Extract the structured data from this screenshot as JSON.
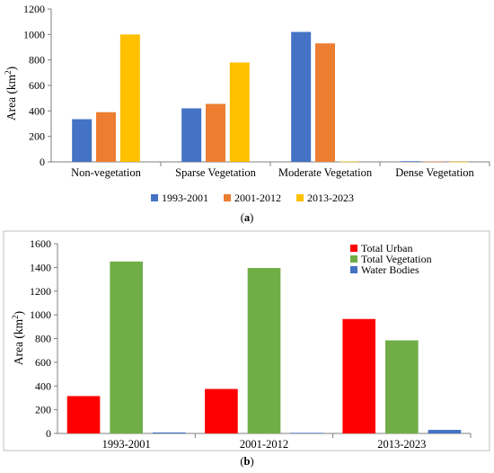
{
  "chart_data": [
    {
      "panel": "(a)",
      "type": "bar",
      "categories": [
        "Non-vegetation",
        "Sparse Vegetation",
        "Moderate Vegetation",
        "Dense Vegetation"
      ],
      "series": [
        {
          "name": "1993-2001",
          "color": "#4472C4",
          "values": [
            335,
            420,
            1020,
            5
          ]
        },
        {
          "name": "2001-2012",
          "color": "#ED7D31",
          "values": [
            390,
            455,
            930,
            2
          ]
        },
        {
          "name": "2013-2023",
          "color": "#FFC000",
          "values": [
            1000,
            780,
            3,
            1
          ]
        }
      ],
      "ylabel": "Area (km²)",
      "ylabel_main": "Area (km",
      "ylabel_sup": "2",
      "ylabel_close": ")",
      "ylim": [
        0,
        1200
      ],
      "yticks": [
        "0",
        "200",
        "400",
        "600",
        "800",
        "1000",
        "1200"
      ],
      "legend_position": "bottom",
      "grid": false
    },
    {
      "panel": "(b)",
      "type": "bar",
      "categories": [
        "1993-2001",
        "2001-2012",
        "2013-2023"
      ],
      "series": [
        {
          "name": "Total Urban",
          "color": "#FF0000",
          "values": [
            315,
            375,
            965
          ]
        },
        {
          "name": "Total Vegetation",
          "color": "#70AD47",
          "values": [
            1450,
            1395,
            785
          ]
        },
        {
          "name": "Water Bodies",
          "color": "#4472C4",
          "values": [
            8,
            5,
            30
          ]
        }
      ],
      "ylabel": "Area (km²)",
      "ylabel_main": "Area (km",
      "ylabel_sup": "2",
      "ylabel_close": ")",
      "ylim": [
        0,
        1600
      ],
      "yticks": [
        "0",
        "200",
        "400",
        "600",
        "800",
        "1000",
        "1200",
        "1400",
        "1600"
      ],
      "legend_position": "top-right",
      "grid": false
    }
  ]
}
